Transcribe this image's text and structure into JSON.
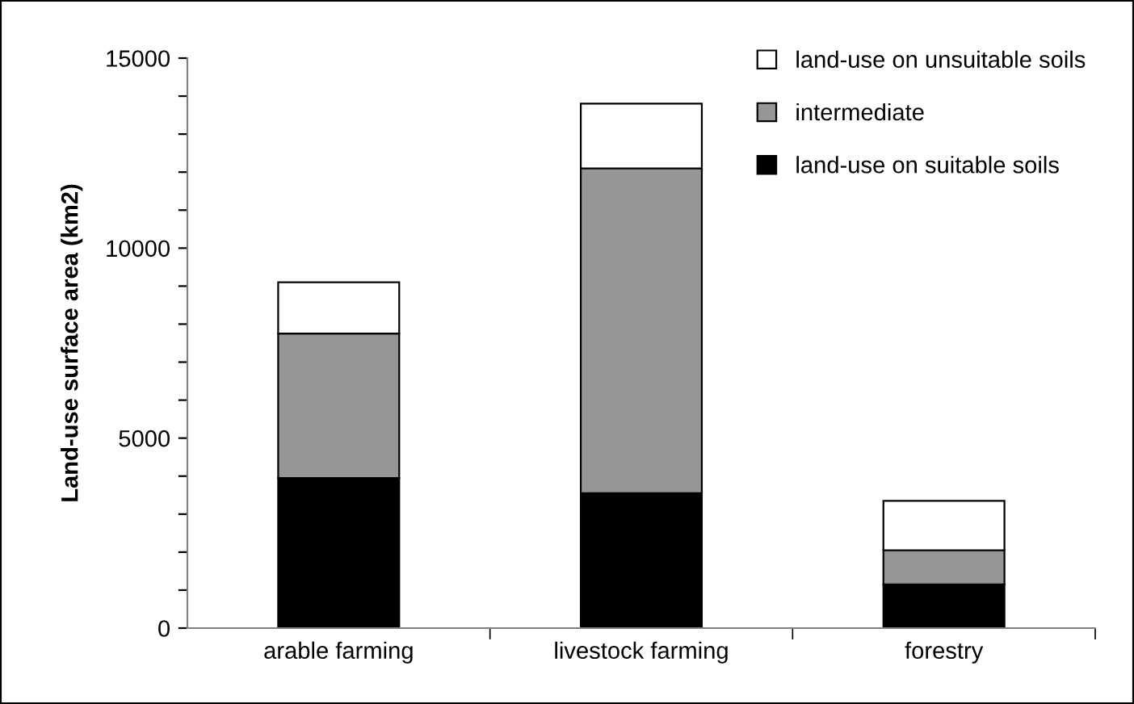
{
  "chart_data": {
    "type": "bar",
    "stacked": true,
    "ylabel": "Land-use surface area (km2)",
    "categories": [
      "arable farming",
      "livestock farming",
      "forestry"
    ],
    "series": [
      {
        "name": "land-use on suitable soils",
        "color": "#000000",
        "values": [
          3950,
          3550,
          1150
        ]
      },
      {
        "name": "intermediate",
        "color": "#969696",
        "values": [
          3800,
          8550,
          900
        ]
      },
      {
        "name": "land-use on unsuitable soils",
        "color": "#ffffff",
        "values": [
          1350,
          1700,
          1300
        ]
      }
    ],
    "ylim": [
      0,
      15000
    ],
    "yticks": [
      0,
      {
        "value": 1000,
        "label": null
      },
      {
        "value": 2000,
        "label": null
      },
      {
        "value": 3000,
        "label": null
      },
      {
        "value": 4000,
        "label": null
      },
      5000,
      {
        "value": 6000,
        "label": null
      },
      {
        "value": 7000,
        "label": null
      },
      {
        "value": 8000,
        "label": null
      },
      {
        "value": 9000,
        "label": null
      },
      10000,
      {
        "value": 11000,
        "label": null
      },
      {
        "value": 12000,
        "label": null
      },
      {
        "value": 13000,
        "label": null
      },
      {
        "value": 14000,
        "label": null
      },
      15000
    ],
    "grid": false,
    "legend": "top right"
  }
}
